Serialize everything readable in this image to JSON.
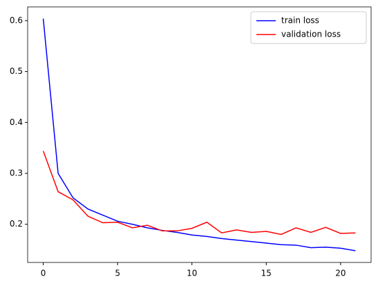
{
  "chart_data": {
    "type": "line",
    "x": [
      0,
      1,
      2,
      3,
      4,
      5,
      6,
      7,
      8,
      9,
      10,
      11,
      12,
      13,
      14,
      15,
      16,
      17,
      18,
      19,
      20,
      21
    ],
    "series": [
      {
        "name": "train loss",
        "color": "#0000ff",
        "values": [
          0.604,
          0.3,
          0.252,
          0.23,
          0.218,
          0.206,
          0.2,
          0.193,
          0.188,
          0.184,
          0.179,
          0.176,
          0.172,
          0.169,
          0.166,
          0.163,
          0.16,
          0.159,
          0.154,
          0.155,
          0.153,
          0.148
        ]
      },
      {
        "name": "validation loss",
        "color": "#ff0000",
        "values": [
          0.344,
          0.264,
          0.248,
          0.216,
          0.203,
          0.204,
          0.193,
          0.198,
          0.187,
          0.187,
          0.192,
          0.204,
          0.183,
          0.189,
          0.184,
          0.186,
          0.18,
          0.193,
          0.184,
          0.194,
          0.182,
          0.183
        ]
      }
    ],
    "xlim": [
      -1.05,
      22.05
    ],
    "xticks": [
      0,
      5,
      10,
      15,
      20
    ],
    "ylim": [
      0.125,
      0.627
    ],
    "yticks": [
      0.2,
      0.3,
      0.4,
      0.5,
      0.6
    ],
    "legend": "upper right"
  }
}
